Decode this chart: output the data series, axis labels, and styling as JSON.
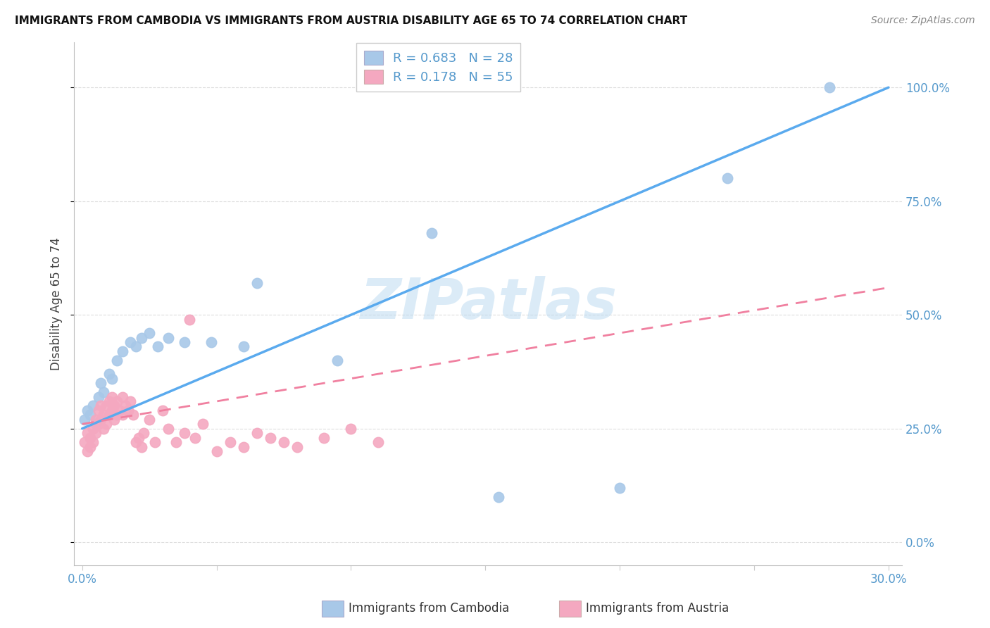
{
  "title": "IMMIGRANTS FROM CAMBODIA VS IMMIGRANTS FROM AUSTRIA DISABILITY AGE 65 TO 74 CORRELATION CHART",
  "source": "Source: ZipAtlas.com",
  "ylabel": "Disability Age 65 to 74",
  "xlim_min": -0.003,
  "xlim_max": 0.305,
  "ylim_min": -0.05,
  "ylim_max": 1.1,
  "xticks": [
    0.0,
    0.05,
    0.1,
    0.15,
    0.2,
    0.25,
    0.3
  ],
  "xtick_labels": [
    "0.0%",
    "",
    "",
    "",
    "",
    "",
    "30.0%"
  ],
  "yticks": [
    0.0,
    0.25,
    0.5,
    0.75,
    1.0
  ],
  "ytick_labels": [
    "0.0%",
    "25.0%",
    "50.0%",
    "75.0%",
    "100.0%"
  ],
  "cambodia_color": "#a8c8e8",
  "austria_color": "#f4a8c0",
  "cambodia_line_color": "#5aaaee",
  "austria_line_color": "#f080a0",
  "cambodia_R": 0.683,
  "cambodia_N": 28,
  "austria_R": 0.178,
  "austria_N": 55,
  "watermark": "ZIPatlas",
  "cambodia_x": [
    0.001,
    0.002,
    0.003,
    0.004,
    0.005,
    0.006,
    0.007,
    0.008,
    0.01,
    0.011,
    0.013,
    0.015,
    0.018,
    0.02,
    0.022,
    0.025,
    0.028,
    0.032,
    0.038,
    0.048,
    0.06,
    0.065,
    0.095,
    0.13,
    0.155,
    0.2,
    0.24,
    0.278
  ],
  "cambodia_y": [
    0.27,
    0.29,
    0.28,
    0.3,
    0.26,
    0.32,
    0.35,
    0.33,
    0.37,
    0.36,
    0.4,
    0.42,
    0.44,
    0.43,
    0.45,
    0.46,
    0.43,
    0.45,
    0.44,
    0.44,
    0.43,
    0.57,
    0.4,
    0.68,
    0.1,
    0.12,
    0.8,
    1.0
  ],
  "austria_x": [
    0.001,
    0.002,
    0.002,
    0.003,
    0.003,
    0.004,
    0.004,
    0.005,
    0.005,
    0.006,
    0.006,
    0.007,
    0.007,
    0.008,
    0.008,
    0.009,
    0.009,
    0.01,
    0.01,
    0.011,
    0.011,
    0.012,
    0.012,
    0.013,
    0.013,
    0.014,
    0.015,
    0.015,
    0.016,
    0.017,
    0.018,
    0.019,
    0.02,
    0.021,
    0.022,
    0.023,
    0.025,
    0.027,
    0.03,
    0.032,
    0.035,
    0.038,
    0.04,
    0.042,
    0.045,
    0.05,
    0.055,
    0.06,
    0.065,
    0.07,
    0.075,
    0.08,
    0.09,
    0.1,
    0.11
  ],
  "austria_y": [
    0.22,
    0.2,
    0.24,
    0.23,
    0.21,
    0.25,
    0.22,
    0.27,
    0.24,
    0.29,
    0.26,
    0.3,
    0.27,
    0.28,
    0.25,
    0.3,
    0.26,
    0.31,
    0.28,
    0.32,
    0.29,
    0.3,
    0.27,
    0.31,
    0.28,
    0.29,
    0.32,
    0.28,
    0.3,
    0.29,
    0.31,
    0.28,
    0.22,
    0.23,
    0.21,
    0.24,
    0.27,
    0.22,
    0.29,
    0.25,
    0.22,
    0.24,
    0.49,
    0.23,
    0.26,
    0.2,
    0.22,
    0.21,
    0.24,
    0.23,
    0.22,
    0.21,
    0.23,
    0.25,
    0.22
  ],
  "cam_trend_x0": 0.0,
  "cam_trend_y0": 0.25,
  "cam_trend_x1": 0.3,
  "cam_trend_y1": 1.0,
  "aut_trend_x0": 0.0,
  "aut_trend_y0": 0.26,
  "aut_trend_x1": 0.3,
  "aut_trend_y1": 0.56
}
